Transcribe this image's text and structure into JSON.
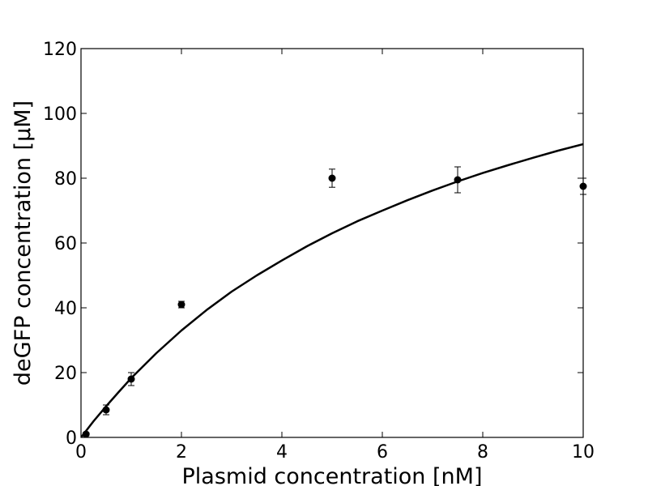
{
  "chart_data": {
    "type": "scatter",
    "title": "",
    "xlabel": "Plasmid concentration [nM]",
    "ylabel": "deGFP concentration [μM]",
    "xlim": [
      0,
      10
    ],
    "ylim": [
      0,
      120
    ],
    "x_ticks": [
      0,
      2,
      4,
      6,
      8,
      10
    ],
    "y_ticks": [
      0,
      20,
      40,
      60,
      80,
      100,
      120
    ],
    "grid": false,
    "legend": "none",
    "series": [
      {
        "kind": "points_with_error",
        "color": "#000000",
        "points": [
          {
            "x": 0.1,
            "y": 1.0,
            "err": 0.5
          },
          {
            "x": 0.5,
            "y": 8.5,
            "err": 1.5
          },
          {
            "x": 1.0,
            "y": 18.0,
            "err": 2.0
          },
          {
            "x": 2.0,
            "y": 41.0,
            "err": 1.0
          },
          {
            "x": 5.0,
            "y": 80.0,
            "err": 2.8
          },
          {
            "x": 7.5,
            "y": 79.5,
            "err": 4.0
          },
          {
            "x": 10.0,
            "y": 77.5,
            "err": 2.5
          }
        ]
      },
      {
        "kind": "line",
        "color": "#000000",
        "points": [
          [
            0,
            0
          ],
          [
            0.25,
            5
          ],
          [
            0.5,
            9.6
          ],
          [
            0.75,
            14
          ],
          [
            1,
            18.3
          ],
          [
            1.5,
            26
          ],
          [
            2,
            33
          ],
          [
            2.5,
            39.3
          ],
          [
            3,
            45
          ],
          [
            3.5,
            50
          ],
          [
            4,
            54.6
          ],
          [
            4.5,
            59
          ],
          [
            5,
            63
          ],
          [
            5.5,
            66.7
          ],
          [
            6,
            70
          ],
          [
            6.5,
            73.2
          ],
          [
            7,
            76.2
          ],
          [
            7.5,
            79
          ],
          [
            8,
            81.6
          ],
          [
            8.5,
            84
          ],
          [
            9,
            86.3
          ],
          [
            9.5,
            88.5
          ],
          [
            10,
            90.5
          ]
        ]
      }
    ]
  }
}
